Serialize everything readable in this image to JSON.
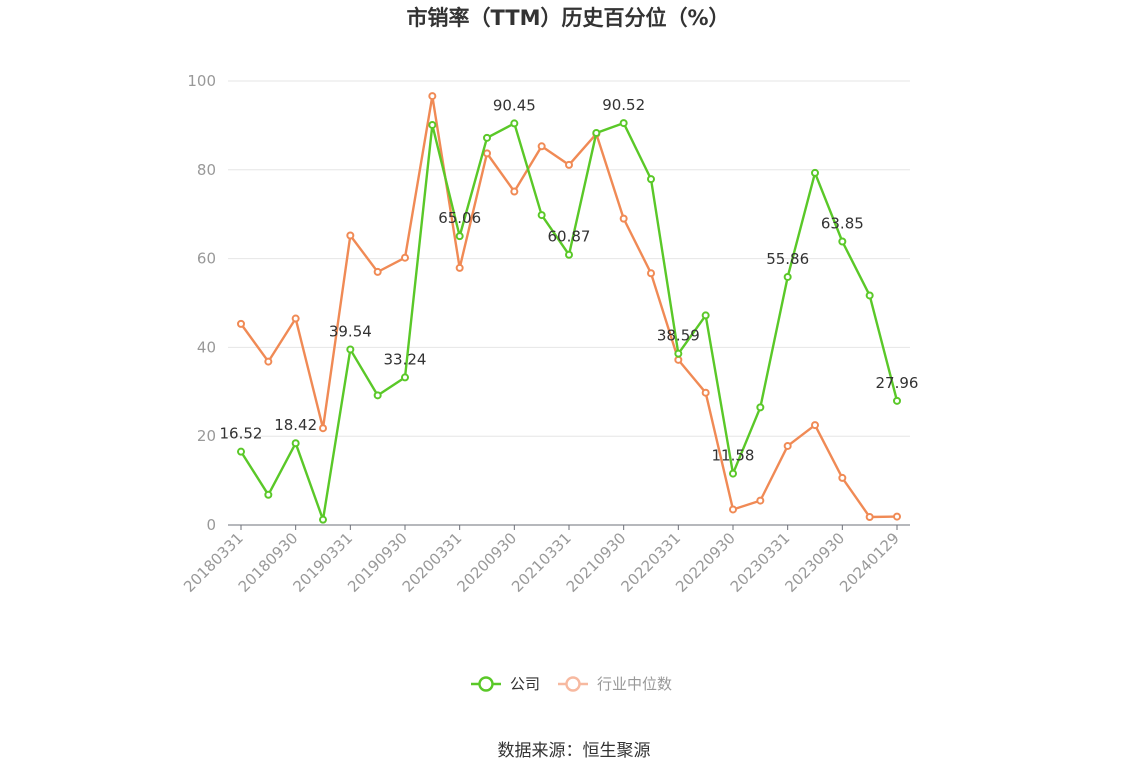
{
  "chart_data": {
    "type": "line",
    "title": "市销率（TTM）历史百分位（%）",
    "source": "数据来源：恒生聚源",
    "ylim": [
      0,
      100
    ],
    "yticks": [
      0,
      20,
      40,
      60,
      80,
      100
    ],
    "grid": true,
    "legend_position": "bottom",
    "x": [
      "20180331",
      "20180630",
      "20180930",
      "20181231",
      "20190331",
      "20190630",
      "20190930",
      "20191231",
      "20200331",
      "20200630",
      "20200930",
      "20201231",
      "20210331",
      "20210630",
      "20210930",
      "20211231",
      "20220331",
      "20220630",
      "20220930",
      "20221231",
      "20230331",
      "20230630",
      "20230930",
      "20231231",
      "20240129"
    ],
    "xtick_labels": [
      "20180331",
      "20180930",
      "20190331",
      "20190930",
      "20200331",
      "20200930",
      "20210331",
      "20210930",
      "20220331",
      "20220930",
      "20230331",
      "20230930",
      "20240129"
    ],
    "series": [
      {
        "name": "公司",
        "color": "#5ac828",
        "values": [
          16.52,
          6.8,
          18.42,
          1.2,
          39.54,
          29.2,
          33.24,
          90.1,
          65.06,
          87.2,
          90.45,
          69.8,
          60.87,
          88.3,
          90.52,
          77.9,
          38.59,
          47.2,
          11.58,
          26.5,
          55.86,
          79.3,
          63.85,
          51.7,
          27.96
        ],
        "labels": {
          "0": "16.52",
          "2": "18.42",
          "4": "39.54",
          "6": "33.24",
          "8": "65.06",
          "10": "90.45",
          "12": "60.87",
          "14": "90.52",
          "16": "38.59",
          "18": "11.58",
          "20": "55.86",
          "22": "63.85",
          "24": "27.96"
        }
      },
      {
        "name": "行业中位数",
        "color": "#f08a55",
        "values": [
          45.3,
          36.8,
          46.5,
          21.8,
          65.2,
          57.0,
          60.2,
          96.6,
          57.9,
          83.7,
          75.1,
          85.3,
          81.1,
          88.1,
          69.0,
          56.7,
          37.2,
          29.8,
          3.5,
          5.5,
          17.8,
          22.5,
          10.6,
          1.8,
          1.9
        ]
      }
    ]
  }
}
